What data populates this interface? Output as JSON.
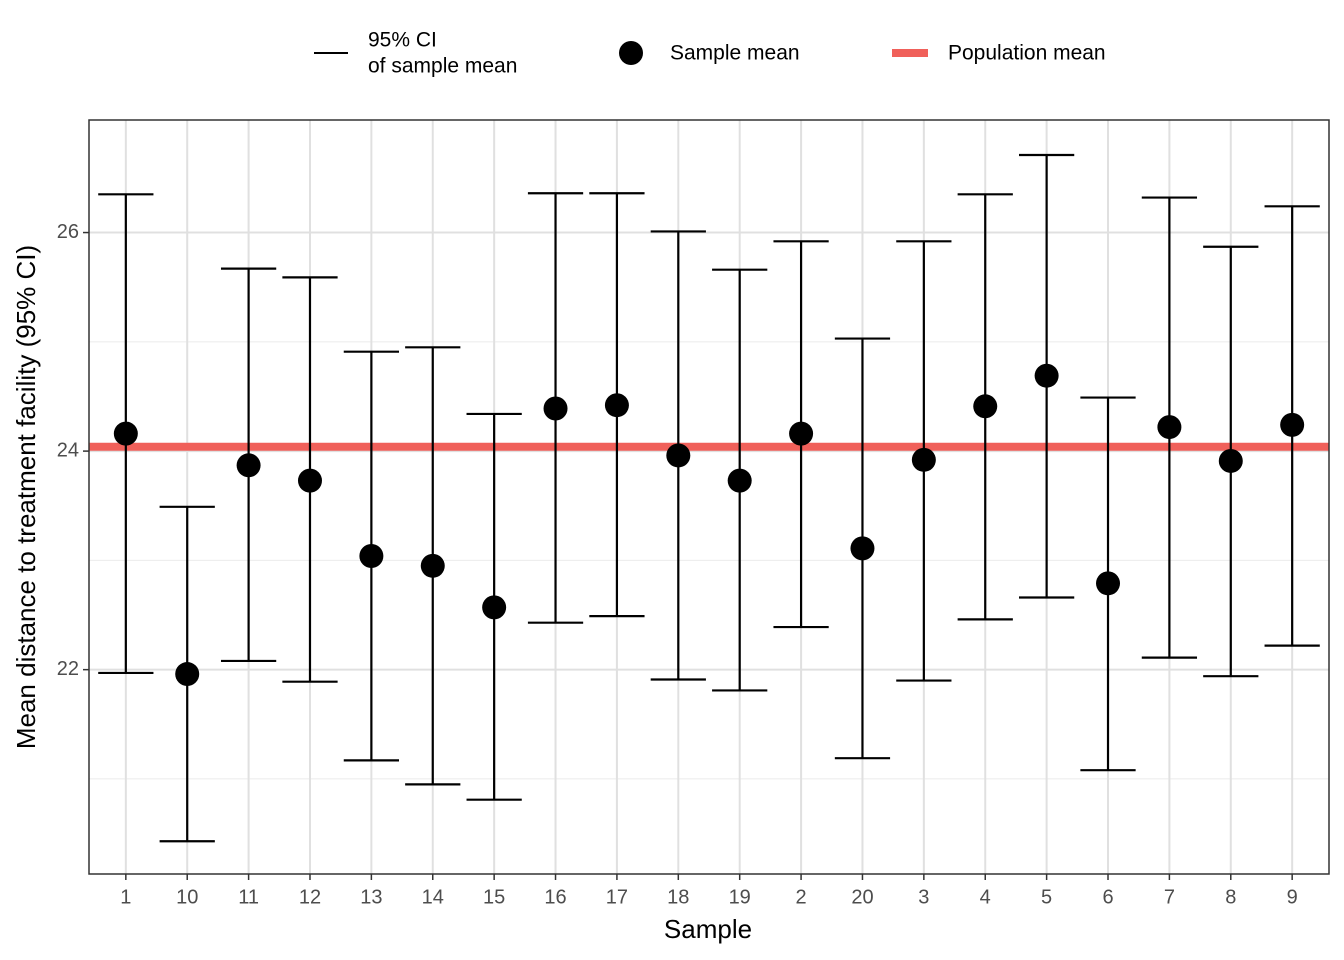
{
  "chart_data": {
    "type": "errorbar",
    "x_label": "Sample",
    "y_label": "Mean distance to treatment facility (95% CI)",
    "categories": [
      "1",
      "10",
      "11",
      "12",
      "13",
      "14",
      "15",
      "16",
      "17",
      "18",
      "19",
      "2",
      "20",
      "3",
      "4",
      "5",
      "6",
      "7",
      "8",
      "9"
    ],
    "series": [
      {
        "name": "Sample mean",
        "color": "#000000",
        "values": [
          24.16,
          21.96,
          23.87,
          23.73,
          23.04,
          22.95,
          22.57,
          24.39,
          24.42,
          23.96,
          23.73,
          24.16,
          23.11,
          23.92,
          24.41,
          24.69,
          22.79,
          24.22,
          23.91,
          24.24
        ]
      }
    ],
    "ci": {
      "name_lines": [
        "95% CI",
        "of sample mean"
      ],
      "color": "#000000",
      "lower": [
        21.97,
        20.43,
        22.08,
        21.89,
        21.17,
        20.95,
        20.81,
        22.43,
        22.49,
        21.91,
        21.81,
        22.39,
        21.19,
        21.9,
        22.46,
        22.66,
        21.08,
        22.11,
        21.94,
        22.22
      ],
      "upper": [
        26.35,
        23.49,
        25.67,
        25.59,
        24.91,
        24.95,
        24.34,
        26.36,
        26.36,
        26.01,
        25.66,
        25.92,
        25.03,
        25.92,
        26.35,
        26.71,
        24.49,
        26.32,
        25.87,
        26.24
      ]
    },
    "reference_line": {
      "name": "Population mean",
      "value": 24.04,
      "color": "#f0605a"
    },
    "ylim": [
      20.13,
      27.03
    ],
    "yticks": [
      22,
      24,
      26
    ],
    "minor_yticks": [
      21,
      23,
      25
    ],
    "grid": true
  }
}
